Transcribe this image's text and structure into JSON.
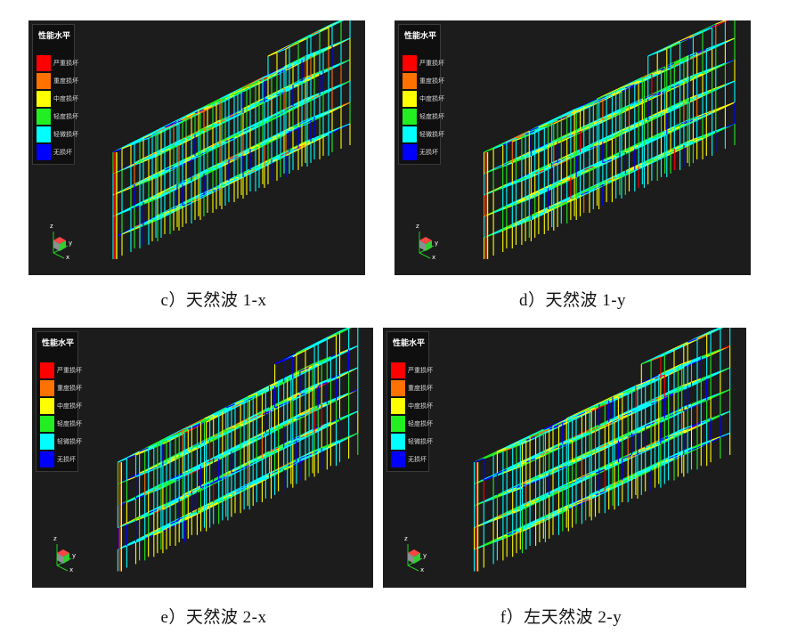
{
  "legend": {
    "title": "性能水平",
    "items": [
      {
        "label": "严重损坏",
        "color": "#ff0000"
      },
      {
        "label": "重度损坏",
        "color": "#ff7200"
      },
      {
        "label": "中度损坏",
        "color": "#ffff00"
      },
      {
        "label": "轻度损坏",
        "color": "#22ee22"
      },
      {
        "label": "轻微损坏",
        "color": "#00ffff"
      },
      {
        "label": "无损坏",
        "color": "#0000ff"
      }
    ]
  },
  "axis_labels": {
    "z": "z",
    "y": "y",
    "x": "x"
  },
  "panels": [
    {
      "caption": "c）天然波 1-x"
    },
    {
      "caption": "d）天然波 1-y"
    },
    {
      "caption": "e）天然波 2-x"
    },
    {
      "caption": "f）左天然波 2-y"
    }
  ]
}
